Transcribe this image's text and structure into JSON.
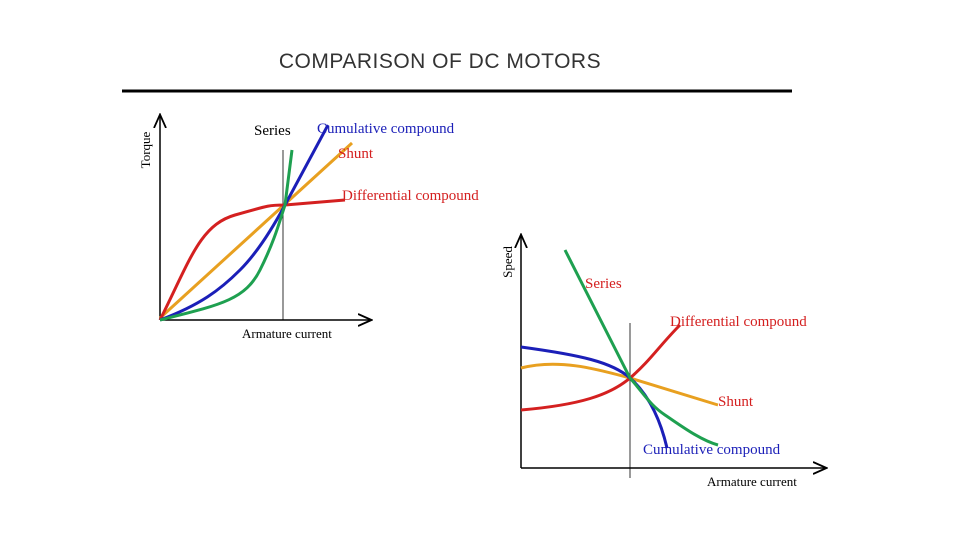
{
  "header": {
    "title": "COMPARISON OF DC MOTORS"
  },
  "torque_chart": {
    "y_label": "Torque",
    "x_label": "Armature current",
    "labels": [
      "Series",
      "Cumulative compound",
      "Shunt",
      "Differential compound"
    ]
  },
  "speed_chart": {
    "y_label": "Speed",
    "x_label": "Armature current",
    "labels": [
      "Series",
      "Differential compound",
      "Shunt",
      "Cumulative compound"
    ]
  }
}
